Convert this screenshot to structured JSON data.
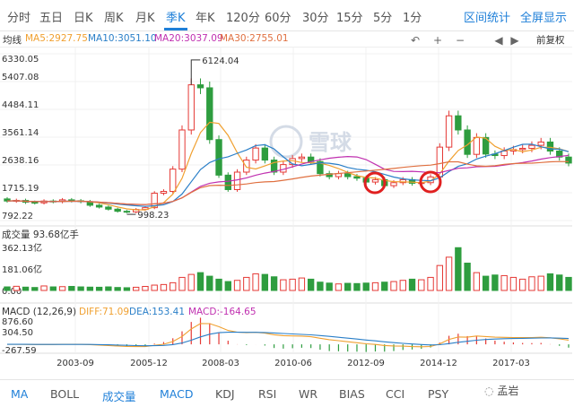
{
  "tabs": {
    "items": [
      "分时",
      "五日",
      "日K",
      "周K",
      "月K",
      "季K",
      "年K",
      "120分",
      "60分",
      "30分",
      "15分",
      "5分",
      "1分"
    ],
    "active": "季K",
    "right": [
      "区间统计",
      "全屏显示"
    ]
  },
  "ma_bar": {
    "label": "均线",
    "ma5": "MA5:2927.75",
    "ma10": "MA10:3051.10",
    "ma20": "MA20:3037.09",
    "ma30": "MA30:2755.01",
    "adjust": "前复权"
  },
  "colors": {
    "up": "#e53935",
    "down": "#2e9d3f",
    "ma5": "#f0a030",
    "ma10": "#2a7fc8",
    "ma20": "#c030b0",
    "ma30": "#e07040",
    "accent": "#1e7fd8"
  },
  "price_axis": [
    "6330.05",
    "5407.08",
    "4484.11",
    "3561.14",
    "2638.16",
    "1715.19",
    "792.22"
  ],
  "price_annotations": {
    "high": "6124.04",
    "low": "998.23"
  },
  "watermark_logo": "雪球",
  "volume_panel": {
    "title": "成交量 93.68亿手",
    "ticks": [
      "362.13亿",
      "181.06亿",
      "0.00"
    ]
  },
  "macd_panel": {
    "title": "MACD (12,26,9)",
    "diff": "DIFF:71.09",
    "dea": "DEA:153.41",
    "macd": "MACD:-164.65",
    "ticks": [
      "876.60",
      "304.50",
      "-267.59"
    ]
  },
  "x_axis": [
    "2003-09",
    "2005-12",
    "2008-03",
    "2010-06",
    "2012-09",
    "2014-12",
    "2017-03"
  ],
  "indicators": {
    "items": [
      "MA",
      "BOLL",
      "成交量",
      "MACD",
      "KDJ",
      "RSI",
      "WR",
      "BIAS",
      "CCI",
      "PSY"
    ],
    "highlight": [
      "成交量",
      "MACD"
    ]
  },
  "wechat_mark": "孟岩",
  "chart_data": {
    "type": "candlestick",
    "title": "",
    "x_ticks": [
      "2003-09",
      "2005-12",
      "2008-03",
      "2010-06",
      "2012-09",
      "2014-12",
      "2017-03"
    ],
    "price_ylim": [
      792.22,
      6330.05
    ],
    "candles": [
      {
        "open": 1510,
        "close": 1440
      },
      {
        "open": 1440,
        "close": 1460
      },
      {
        "open": 1460,
        "close": 1400
      },
      {
        "open": 1400,
        "close": 1380
      },
      {
        "open": 1380,
        "close": 1440
      },
      {
        "open": 1440,
        "close": 1420
      },
      {
        "open": 1420,
        "close": 1480
      },
      {
        "open": 1480,
        "close": 1450
      },
      {
        "open": 1450,
        "close": 1420
      },
      {
        "open": 1420,
        "close": 1300
      },
      {
        "open": 1300,
        "close": 1240
      },
      {
        "open": 1240,
        "close": 1170
      },
      {
        "open": 1170,
        "close": 1100
      },
      {
        "open": 1100,
        "close": 1080
      },
      {
        "open": 1080,
        "close": 1160
      },
      {
        "open": 1160,
        "close": 1220
      },
      {
        "open": 1220,
        "close": 1700
      },
      {
        "open": 1700,
        "close": 1760
      },
      {
        "open": 1760,
        "close": 2500
      },
      {
        "open": 2500,
        "close": 3800
      },
      {
        "open": 3800,
        "close": 5300
      },
      {
        "open": 5300,
        "close": 5200
      },
      {
        "open": 5200,
        "close": 3480
      },
      {
        "open": 3480,
        "close": 2300
      },
      {
        "open": 2300,
        "close": 1820
      },
      {
        "open": 1820,
        "close": 2400
      },
      {
        "open": 2400,
        "close": 2800
      },
      {
        "open": 2800,
        "close": 3200
      },
      {
        "open": 3200,
        "close": 2800
      },
      {
        "open": 2800,
        "close": 2400
      },
      {
        "open": 2400,
        "close": 2650
      },
      {
        "open": 2650,
        "close": 2850
      },
      {
        "open": 2850,
        "close": 2900
      },
      {
        "open": 2900,
        "close": 2750
      },
      {
        "open": 2750,
        "close": 2350
      },
      {
        "open": 2350,
        "close": 2250
      },
      {
        "open": 2250,
        "close": 2350
      },
      {
        "open": 2350,
        "close": 2250
      },
      {
        "open": 2250,
        "close": 2200
      },
      {
        "open": 2200,
        "close": 2070
      },
      {
        "open": 2070,
        "close": 2150
      },
      {
        "open": 2150,
        "close": 1950
      },
      {
        "open": 1950,
        "close": 2050
      },
      {
        "open": 2050,
        "close": 2150
      },
      {
        "open": 2150,
        "close": 2030
      },
      {
        "open": 2030,
        "close": 2050
      },
      {
        "open": 2050,
        "close": 2240
      },
      {
        "open": 2240,
        "close": 3230
      },
      {
        "open": 3230,
        "close": 4270
      },
      {
        "open": 4270,
        "close": 3800
      },
      {
        "open": 3800,
        "close": 2990
      },
      {
        "open": 2990,
        "close": 3550
      },
      {
        "open": 3550,
        "close": 3000
      },
      {
        "open": 3000,
        "close": 2950
      },
      {
        "open": 2950,
        "close": 3100
      },
      {
        "open": 3100,
        "close": 3150
      },
      {
        "open": 3150,
        "close": 3190
      },
      {
        "open": 3190,
        "close": 3290
      },
      {
        "open": 3290,
        "close": 3400
      },
      {
        "open": 3400,
        "close": 3100
      },
      {
        "open": 3100,
        "close": 2900
      },
      {
        "open": 2900,
        "close": 2700
      }
    ],
    "volume_ylim": [
      0,
      362.13
    ],
    "volume": [
      30,
      35,
      28,
      25,
      38,
      30,
      32,
      34,
      30,
      28,
      27,
      30,
      25,
      23,
      27,
      34,
      45,
      50,
      65,
      110,
      135,
      150,
      120,
      95,
      75,
      85,
      110,
      140,
      135,
      115,
      90,
      95,
      105,
      95,
      70,
      62,
      55,
      60,
      58,
      62,
      65,
      70,
      75,
      85,
      95,
      90,
      110,
      210,
      280,
      360,
      230,
      150,
      120,
      130,
      125,
      110,
      95,
      115,
      120,
      140,
      130,
      110
    ],
    "macd_ylim": [
      -267.59,
      876.6
    ]
  }
}
